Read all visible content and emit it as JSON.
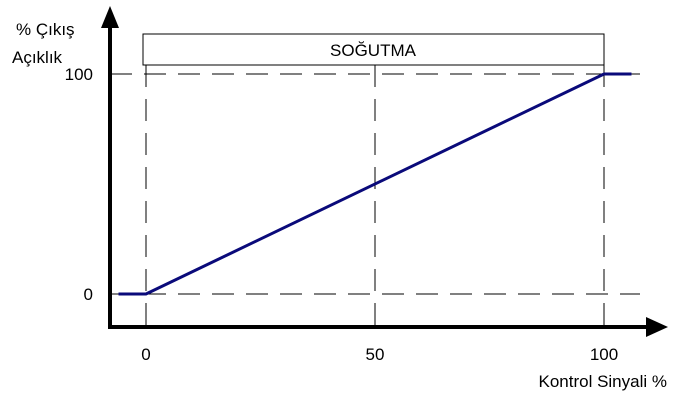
{
  "chart_data": {
    "type": "line",
    "title": "",
    "banner": "SOĞUTMA",
    "ylabel_lines": [
      "% Çıkış",
      "Açıklık"
    ],
    "xlabel": "Kontrol Sinyali %",
    "xlim": [
      -8,
      107
    ],
    "ylim": [
      -15,
      118
    ],
    "x_ticks": [
      0,
      50,
      100
    ],
    "x_tick_labels": [
      "0",
      "50",
      "100"
    ],
    "y_ticks": [
      0,
      100
    ],
    "y_tick_labels": [
      "0",
      "100"
    ],
    "grid": true,
    "series": [
      {
        "x": [
          -6,
          0,
          100,
          106
        ],
        "y": [
          0,
          0,
          100,
          100
        ]
      }
    ],
    "colors": {
      "series": "#0a0a7a",
      "axes": "#000000"
    }
  }
}
